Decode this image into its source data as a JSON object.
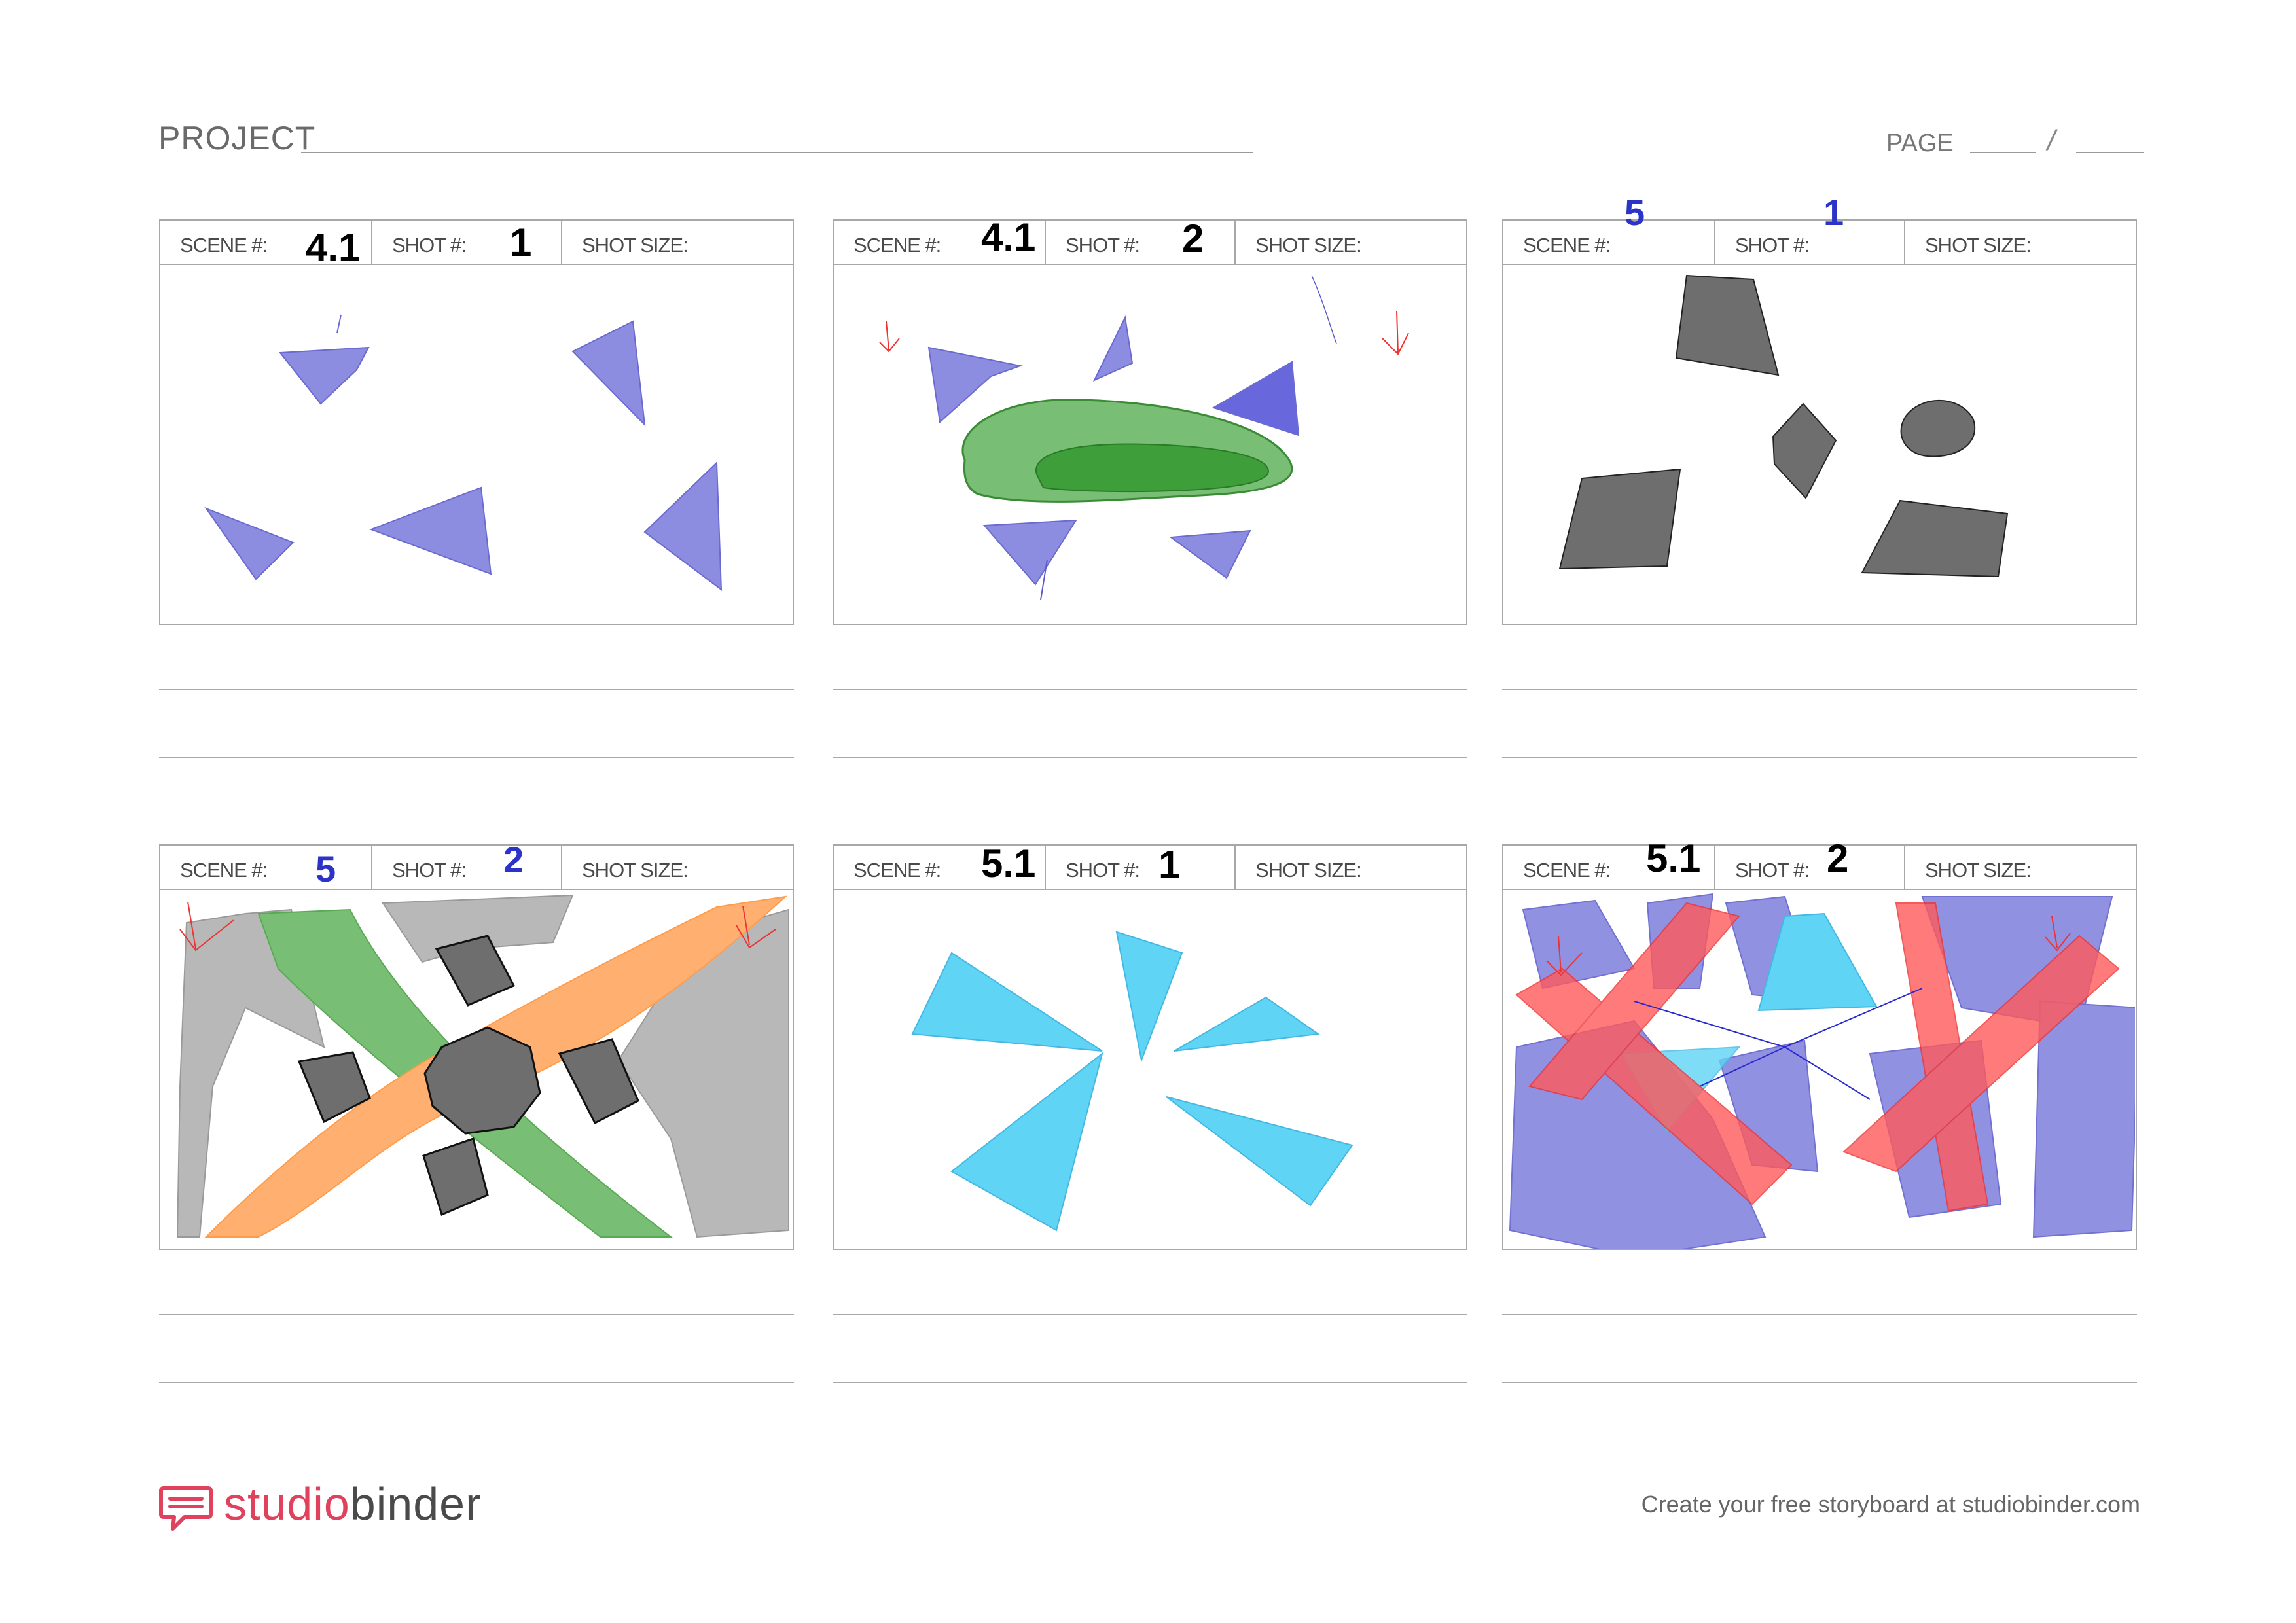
{
  "header": {
    "project_label": "PROJECT",
    "page_label": "PAGE",
    "page_separator": "/"
  },
  "labels": {
    "scene": "SCENE #:",
    "shot": "SHOT #:",
    "shot_size": "SHOT SIZE:"
  },
  "panels": [
    {
      "scene": "4.1",
      "shot": "1",
      "scene_color": "#000000",
      "shot_color": "#000000"
    },
    {
      "scene": "4.1",
      "shot": "2",
      "scene_color": "#000000",
      "shot_color": "#000000"
    },
    {
      "scene": "5",
      "shot": "1",
      "scene_color": "#2c34c8",
      "shot_color": "#2c34c8"
    },
    {
      "scene": "5",
      "shot": "2",
      "scene_color": "#2c34c8",
      "shot_color": "#2c34c8"
    },
    {
      "scene": "5.1",
      "shot": "1",
      "scene_color": "#000000",
      "shot_color": "#000000"
    },
    {
      "scene": "5.1",
      "shot": "2",
      "scene_color": "#000000",
      "shot_color": "#000000"
    }
  ],
  "colors": {
    "brand": "#e0425e",
    "purple": "#8c8ce0",
    "green": "#5aaa55",
    "gray": "#6e6e6e",
    "light_gray": "#b8b8b8",
    "orange": "#ffa95a",
    "cyan": "#5fd4f5",
    "red": "#ff5a5a"
  },
  "footer": {
    "logo_part1": "studio",
    "logo_part2": "binder",
    "cta": "Create your free storyboard at studiobinder.com"
  }
}
